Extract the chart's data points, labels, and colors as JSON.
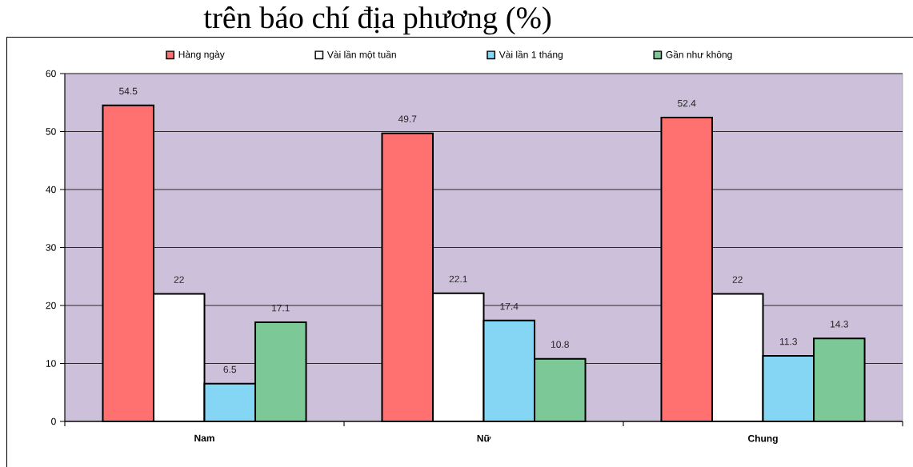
{
  "chart_data": {
    "type": "bar",
    "title": "trên báo chí địa phương (%)",
    "categories": [
      "Nam",
      "Nữ",
      "Chung"
    ],
    "series": [
      {
        "name": "Hàng ngày",
        "color": "#ff7070",
        "values": [
          54.5,
          49.7,
          52.4
        ]
      },
      {
        "name": "Vài lần một tuần",
        "color": "#ffffff",
        "values": [
          22,
          22.1,
          22
        ]
      },
      {
        "name": "Vài lần 1 tháng",
        "color": "#85d6f5",
        "values": [
          6.5,
          17.4,
          11.3
        ]
      },
      {
        "name": "Gần như không",
        "color": "#7cc896",
        "values": [
          17.1,
          10.8,
          14.3
        ]
      }
    ],
    "ylim": [
      0,
      60
    ],
    "yticks": [
      0,
      10,
      20,
      30,
      40,
      50,
      60
    ],
    "grid": "y",
    "legend": "top",
    "data_labels": true
  }
}
